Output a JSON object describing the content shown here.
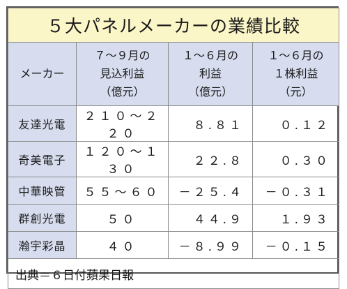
{
  "title": "５大パネルメーカーの業績比較",
  "headers": {
    "maker": "メーカー",
    "estimate": [
      "７～９月の",
      "見込利益",
      "（億元）"
    ],
    "profit": [
      "１～６月の",
      "利益",
      "（億元）"
    ],
    "eps": [
      "１～６月の",
      "１株利益",
      "（元）"
    ]
  },
  "rows": [
    {
      "name": "友達光電",
      "estimate": "２１０～２２０",
      "profit": "８.８１",
      "eps": "０.１２"
    },
    {
      "name": "奇美電子",
      "estimate": "１２０～１３０",
      "profit": "２２.８",
      "eps": "０.３０"
    },
    {
      "name": "中華映管",
      "estimate": "５５～６０",
      "profit": "－２５.４",
      "eps": "－０.３１"
    },
    {
      "name": "群創光電",
      "estimate": "５０",
      "profit": "４４.９",
      "eps": "１.９３"
    },
    {
      "name": "瀚宇彩晶",
      "estimate": "４０",
      "profit": "－８.９９",
      "eps": "－０.１５"
    }
  ],
  "source": "出典＝６日付蘋果日報",
  "colors": {
    "title_bg": "#fbf6c8",
    "header_bg": "#d7ddef",
    "border": "#8a8a8a"
  }
}
